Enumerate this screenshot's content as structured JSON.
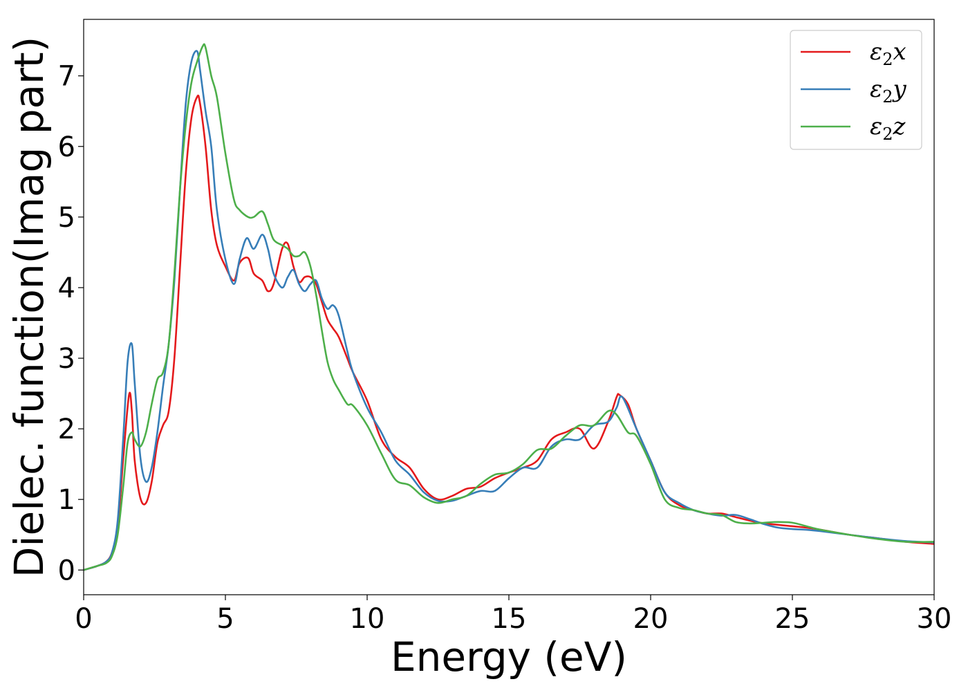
{
  "chart_data": {
    "type": "line",
    "title": "",
    "xlabel": "Energy (eV)",
    "ylabel": "Dielec. function(Imag part)",
    "xlim": [
      0,
      30
    ],
    "ylim": [
      -0.35,
      7.8
    ],
    "xticks": [
      "0",
      "5",
      "10",
      "15",
      "20",
      "25",
      "30"
    ],
    "yticks": [
      "0",
      "1",
      "2",
      "3",
      "4",
      "5",
      "6",
      "7"
    ],
    "grid": false,
    "legend_position": "top-right",
    "series": [
      {
        "name": "ε₂x",
        "legend_main": "ε",
        "legend_sub": "2",
        "legend_var": "x",
        "color": "#e41a1c",
        "x": [
          0,
          0.5,
          0.8,
          1.0,
          1.2,
          1.4,
          1.6,
          1.7,
          1.8,
          2.0,
          2.2,
          2.4,
          2.6,
          2.8,
          3.0,
          3.2,
          3.4,
          3.6,
          3.8,
          4.0,
          4.1,
          4.3,
          4.5,
          4.7,
          5.0,
          5.3,
          5.5,
          5.8,
          6.0,
          6.3,
          6.5,
          6.7,
          7.0,
          7.2,
          7.4,
          7.6,
          7.8,
          8.0,
          8.2,
          8.4,
          8.6,
          8.8,
          9.0,
          9.3,
          9.5,
          10.0,
          10.5,
          11.0,
          11.5,
          12.0,
          12.5,
          13.0,
          13.5,
          14.0,
          14.5,
          15.0,
          15.5,
          16.0,
          16.5,
          17.0,
          17.5,
          18.0,
          18.5,
          18.8,
          18.9,
          19.2,
          19.5,
          20.0,
          20.5,
          21.0,
          21.5,
          22.0,
          22.5,
          23.0,
          23.5,
          24.0,
          24.5,
          25.0,
          25.5,
          26.0,
          27.0,
          28.0,
          29.0,
          30.0
        ],
        "y": [
          0.0,
          0.06,
          0.12,
          0.25,
          0.6,
          1.6,
          2.48,
          2.25,
          1.55,
          1.02,
          0.95,
          1.25,
          1.8,
          2.05,
          2.25,
          3.0,
          4.3,
          5.6,
          6.4,
          6.7,
          6.62,
          6.0,
          5.1,
          4.6,
          4.3,
          4.1,
          4.35,
          4.42,
          4.2,
          4.1,
          3.95,
          4.05,
          4.55,
          4.62,
          4.3,
          4.08,
          4.15,
          4.15,
          4.05,
          3.8,
          3.55,
          3.42,
          3.3,
          3.0,
          2.8,
          2.4,
          1.85,
          1.6,
          1.45,
          1.15,
          1.0,
          1.05,
          1.15,
          1.18,
          1.3,
          1.38,
          1.45,
          1.55,
          1.85,
          1.95,
          2.0,
          1.72,
          2.1,
          2.45,
          2.48,
          2.35,
          2.0,
          1.55,
          1.1,
          0.92,
          0.85,
          0.8,
          0.8,
          0.75,
          0.7,
          0.66,
          0.64,
          0.62,
          0.6,
          0.57,
          0.5,
          0.45,
          0.4,
          0.37
        ]
      },
      {
        "name": "ε₂y",
        "legend_main": "ε",
        "legend_sub": "2",
        "legend_var": "y",
        "color": "#377eb8",
        "x": [
          0,
          0.5,
          0.8,
          1.0,
          1.2,
          1.4,
          1.55,
          1.7,
          1.8,
          2.0,
          2.2,
          2.4,
          2.6,
          2.8,
          3.0,
          3.2,
          3.4,
          3.6,
          3.8,
          4.0,
          4.1,
          4.3,
          4.5,
          4.7,
          5.0,
          5.3,
          5.5,
          5.75,
          6.0,
          6.3,
          6.5,
          6.7,
          7.0,
          7.2,
          7.4,
          7.6,
          7.8,
          8.0,
          8.2,
          8.4,
          8.6,
          8.8,
          9.0,
          9.3,
          9.5,
          10.0,
          10.5,
          11.0,
          11.5,
          12.0,
          12.5,
          13.0,
          13.5,
          14.0,
          14.5,
          15.0,
          15.5,
          16.0,
          16.5,
          17.0,
          17.5,
          18.0,
          18.5,
          18.8,
          19.0,
          19.5,
          20.0,
          20.5,
          21.0,
          21.5,
          22.0,
          22.5,
          23.0,
          23.5,
          24.0,
          24.5,
          25.0,
          25.5,
          26.0,
          27.0,
          28.0,
          29.0,
          30.0
        ],
        "y": [
          0.0,
          0.06,
          0.12,
          0.25,
          0.7,
          1.9,
          2.95,
          3.2,
          2.65,
          1.6,
          1.25,
          1.45,
          1.95,
          2.6,
          3.2,
          4.1,
          5.4,
          6.6,
          7.2,
          7.35,
          7.1,
          6.5,
          6.0,
          5.1,
          4.4,
          4.05,
          4.4,
          4.7,
          4.55,
          4.75,
          4.55,
          4.2,
          4.0,
          4.15,
          4.25,
          4.05,
          3.95,
          4.05,
          4.1,
          3.85,
          3.7,
          3.75,
          3.6,
          3.1,
          2.8,
          2.3,
          1.95,
          1.55,
          1.35,
          1.1,
          0.98,
          0.98,
          1.05,
          1.12,
          1.12,
          1.3,
          1.45,
          1.45,
          1.75,
          1.85,
          1.85,
          2.05,
          2.1,
          2.3,
          2.45,
          2.0,
          1.55,
          1.1,
          0.95,
          0.85,
          0.8,
          0.77,
          0.78,
          0.72,
          0.65,
          0.6,
          0.58,
          0.57,
          0.55,
          0.5,
          0.45,
          0.41,
          0.39
        ]
      },
      {
        "name": "ε₂z",
        "legend_main": "ε",
        "legend_sub": "2",
        "legend_var": "z",
        "color": "#4daf4a",
        "x": [
          0,
          0.5,
          0.8,
          1.0,
          1.2,
          1.4,
          1.55,
          1.7,
          1.8,
          2.0,
          2.2,
          2.4,
          2.6,
          2.8,
          3.0,
          3.2,
          3.4,
          3.6,
          3.8,
          4.0,
          4.2,
          4.3,
          4.5,
          4.7,
          5.0,
          5.3,
          5.5,
          5.8,
          6.0,
          6.3,
          6.5,
          6.7,
          7.0,
          7.2,
          7.4,
          7.6,
          7.8,
          8.0,
          8.2,
          8.4,
          8.6,
          8.8,
          9.0,
          9.3,
          9.5,
          10.0,
          10.5,
          11.0,
          11.5,
          12.0,
          12.5,
          13.0,
          13.5,
          14.0,
          14.5,
          15.0,
          15.5,
          16.0,
          16.5,
          17.0,
          17.5,
          18.0,
          18.5,
          18.8,
          19.2,
          19.5,
          20.0,
          20.5,
          21.0,
          21.5,
          22.0,
          22.5,
          23.0,
          23.5,
          24.0,
          24.5,
          25.0,
          25.5,
          26.0,
          27.0,
          28.0,
          29.0,
          30.0
        ],
        "y": [
          0.0,
          0.06,
          0.1,
          0.2,
          0.5,
          1.2,
          1.8,
          1.95,
          1.85,
          1.75,
          1.95,
          2.35,
          2.7,
          2.8,
          3.2,
          4.2,
          5.4,
          6.3,
          6.9,
          7.2,
          7.42,
          7.4,
          7.0,
          6.7,
          5.9,
          5.25,
          5.1,
          5.0,
          5.0,
          5.08,
          4.9,
          4.68,
          4.6,
          4.55,
          4.45,
          4.45,
          4.5,
          4.3,
          3.9,
          3.4,
          2.95,
          2.7,
          2.55,
          2.35,
          2.33,
          2.05,
          1.65,
          1.28,
          1.2,
          1.03,
          0.95,
          1.0,
          1.05,
          1.22,
          1.35,
          1.38,
          1.5,
          1.7,
          1.72,
          1.9,
          2.05,
          2.05,
          2.25,
          2.2,
          1.95,
          1.9,
          1.5,
          1.0,
          0.88,
          0.85,
          0.8,
          0.78,
          0.68,
          0.66,
          0.67,
          0.68,
          0.67,
          0.62,
          0.57,
          0.5,
          0.44,
          0.4,
          0.4
        ]
      }
    ]
  }
}
